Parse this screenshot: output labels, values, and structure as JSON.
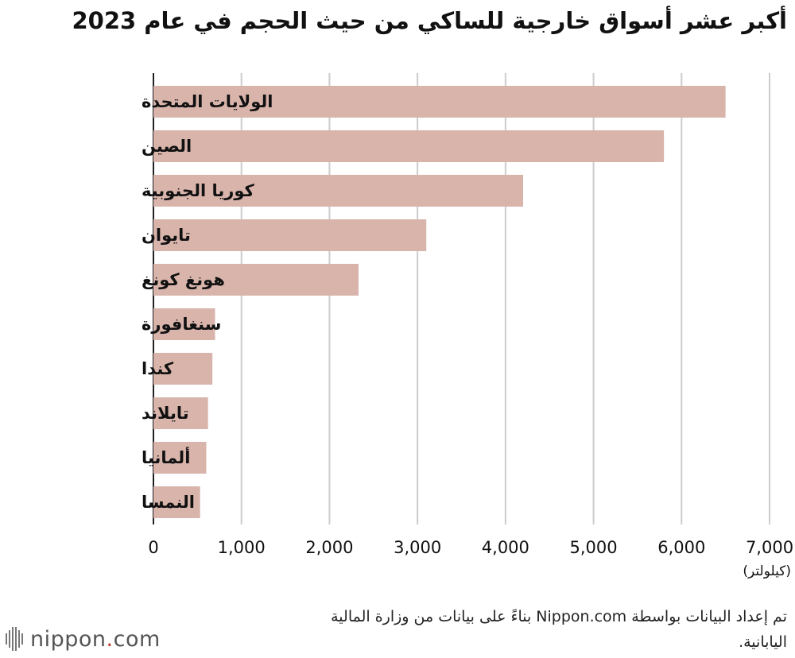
{
  "title": "أكبر عشر أسواق خارجية للساكي من حيث الحجم في عام 2023",
  "source": "تم إعداد البيانات بواسطة Nippon.com بناءً على بيانات من وزارة المالية اليابانية.",
  "logo": {
    "brand": "nippon",
    "dot": ".",
    "suffix": "com"
  },
  "colors": {
    "bar": "#d8b4ab",
    "grid": "#cccccc",
    "axis": "#222222"
  },
  "chart_data": {
    "type": "bar",
    "orientation": "horizontal",
    "categories": [
      "الولايات المتحدة",
      "الصين",
      "كوريا الجنوبية",
      "تايوان",
      "هونغ كونغ",
      "سنغافورة",
      "كندا",
      "تايلاند",
      "ألمانيا",
      "النمسا"
    ],
    "values": [
      6500,
      5800,
      4200,
      3100,
      2330,
      700,
      670,
      620,
      600,
      530
    ],
    "xlim": [
      0,
      7000
    ],
    "xticks": [
      0,
      1000,
      2000,
      3000,
      4000,
      5000,
      6000,
      7000
    ],
    "xtick_labels": [
      "0",
      "1,000",
      "2,000",
      "3,000",
      "4,000",
      "5,000",
      "6,000",
      "7,000"
    ],
    "xlabel": "(كيلولتر)",
    "grid": "vertical"
  }
}
